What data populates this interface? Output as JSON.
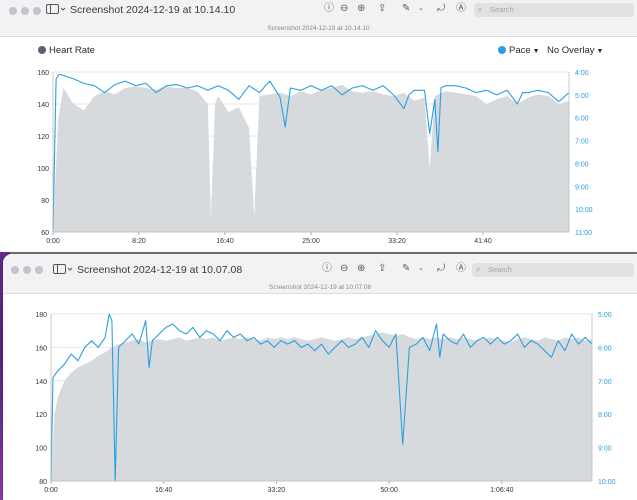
{
  "colors": {
    "pace": "#2b9fe0",
    "area": "#d7dadd",
    "axis_left": "#333333",
    "axis_right": "#2b9fe0",
    "heart_dot": "#5b6472"
  },
  "window1": {
    "title": "Screenshot 2024-12-19 at 10.14.10",
    "subtitle": "Screenshot 2024-12-19 at 10.14.10",
    "search_placeholder": "Search",
    "legend": {
      "heart_rate": "Heart Rate",
      "pace": "Pace",
      "overlay": "No Overlay"
    },
    "chart_data": {
      "type": "area+line",
      "x_ticks": [
        "0:00",
        "8:20",
        "16:40",
        "25:00",
        "33:20",
        "41:40"
      ],
      "x_range_min": [
        0,
        50
      ],
      "y_left_ticks": [
        "60",
        "80",
        "100",
        "120",
        "140",
        "160"
      ],
      "y_left_range": [
        60,
        160
      ],
      "y_right_ticks": [
        "4:00",
        "5:00",
        "6:00",
        "7:00",
        "8:00",
        "9:00",
        "10:00",
        "11:00"
      ],
      "y_right_range_min_per_unit": [
        4,
        11
      ],
      "heart_rate": [
        [
          0,
          60
        ],
        [
          0.5,
          130
        ],
        [
          1,
          150
        ],
        [
          2,
          140
        ],
        [
          3,
          136
        ],
        [
          4,
          145
        ],
        [
          5,
          148
        ],
        [
          6,
          146
        ],
        [
          7,
          150
        ],
        [
          8,
          151
        ],
        [
          9,
          150
        ],
        [
          10,
          149
        ],
        [
          11,
          151
        ],
        [
          12,
          150
        ],
        [
          13,
          150
        ],
        [
          14,
          148
        ],
        [
          15,
          140
        ],
        [
          15.3,
          70
        ],
        [
          15.7,
          140
        ],
        [
          16,
          145
        ],
        [
          17,
          135
        ],
        [
          18,
          138
        ],
        [
          19,
          125
        ],
        [
          19.5,
          70
        ],
        [
          20,
          145
        ],
        [
          21,
          146
        ],
        [
          22,
          147
        ],
        [
          23,
          145
        ],
        [
          24,
          148
        ],
        [
          25,
          146
        ],
        [
          26,
          149
        ],
        [
          27,
          150
        ],
        [
          28,
          152
        ],
        [
          29,
          148
        ],
        [
          30,
          147
        ],
        [
          31,
          148
        ],
        [
          32,
          146
        ],
        [
          33,
          145
        ],
        [
          34,
          147
        ],
        [
          35,
          142
        ],
        [
          36,
          144
        ],
        [
          36.5,
          100
        ],
        [
          37,
          145
        ],
        [
          38,
          148
        ],
        [
          39,
          147
        ],
        [
          40,
          146
        ],
        [
          41,
          145
        ],
        [
          42,
          140
        ],
        [
          43,
          143
        ],
        [
          44,
          145
        ],
        [
          45,
          140
        ],
        [
          46,
          144
        ],
        [
          47,
          146
        ],
        [
          48,
          145
        ],
        [
          49,
          140
        ],
        [
          50,
          142
        ]
      ],
      "pace": [
        [
          0,
          11
        ],
        [
          0.3,
          4.3
        ],
        [
          0.6,
          4.1
        ],
        [
          1,
          4.15
        ],
        [
          2,
          4.3
        ],
        [
          3,
          4.5
        ],
        [
          4,
          4.6
        ],
        [
          5,
          4.9
        ],
        [
          6,
          4.55
        ],
        [
          7,
          4.4
        ],
        [
          8,
          4.6
        ],
        [
          9,
          4.5
        ],
        [
          10,
          4.9
        ],
        [
          11,
          4.6
        ],
        [
          12,
          4.55
        ],
        [
          13,
          4.7
        ],
        [
          14,
          4.6
        ],
        [
          15,
          4.8
        ],
        [
          16,
          4.6
        ],
        [
          17,
          4.8
        ],
        [
          18,
          5.2
        ],
        [
          19,
          4.6
        ],
        [
          20,
          4.9
        ],
        [
          21,
          4.4
        ],
        [
          22,
          5.1
        ],
        [
          22.5,
          6.4
        ],
        [
          23,
          4.7
        ],
        [
          24,
          4.8
        ],
        [
          25,
          4.6
        ],
        [
          26,
          4.8
        ],
        [
          27,
          4.6
        ],
        [
          28,
          5.0
        ],
        [
          29,
          4.7
        ],
        [
          30,
          4.6
        ],
        [
          31,
          4.8
        ],
        [
          32,
          4.6
        ],
        [
          33,
          5.0
        ],
        [
          34,
          5.6
        ],
        [
          34.5,
          5.0
        ],
        [
          35,
          4.8
        ],
        [
          36,
          4.8
        ],
        [
          36.5,
          6.7
        ],
        [
          37,
          5.2
        ],
        [
          37.3,
          7.5
        ],
        [
          37.6,
          4.7
        ],
        [
          38,
          4.6
        ],
        [
          39,
          4.6
        ],
        [
          40,
          4.7
        ],
        [
          41,
          4.9
        ],
        [
          42,
          4.8
        ],
        [
          43,
          5.0
        ],
        [
          44,
          4.8
        ],
        [
          45,
          5.4
        ],
        [
          45.5,
          4.9
        ],
        [
          46,
          4.9
        ],
        [
          47,
          4.8
        ],
        [
          48,
          4.9
        ],
        [
          49,
          5.3
        ],
        [
          50,
          4.9
        ]
      ]
    }
  },
  "window2": {
    "title": "Screenshot 2024-12-19 at 10.07.08",
    "subtitle": "Screenshot 2024-12-19 at 10.07.08",
    "search_placeholder": "Search",
    "chart_data": {
      "type": "area+line",
      "x_ticks": [
        "0:00",
        "16:40",
        "33:20",
        "50:00",
        "1:06:40"
      ],
      "x_range_min": [
        0,
        80
      ],
      "y_left_ticks": [
        "80",
        "100",
        "120",
        "140",
        "160",
        "180"
      ],
      "y_left_range": [
        80,
        180
      ],
      "y_right_ticks": [
        "5:00",
        "6:00",
        "7:00",
        "8:00",
        "9:00",
        "10:00"
      ],
      "y_right_range_min_per_unit": [
        5,
        10
      ],
      "heart_rate": [
        [
          0,
          80
        ],
        [
          0.5,
          120
        ],
        [
          1,
          130
        ],
        [
          2,
          140
        ],
        [
          3,
          145
        ],
        [
          4,
          148
        ],
        [
          5,
          150
        ],
        [
          6,
          152
        ],
        [
          7,
          155
        ],
        [
          8,
          157
        ],
        [
          9,
          160
        ],
        [
          10,
          162
        ],
        [
          11,
          163
        ],
        [
          12,
          164
        ],
        [
          13,
          165
        ],
        [
          14,
          163
        ],
        [
          15,
          164
        ],
        [
          16,
          165
        ],
        [
          17,
          164
        ],
        [
          18,
          165
        ],
        [
          19,
          166
        ],
        [
          20,
          164
        ],
        [
          21,
          165
        ],
        [
          22,
          166
        ],
        [
          23,
          165
        ],
        [
          24,
          166
        ],
        [
          25,
          164
        ],
        [
          26,
          165
        ],
        [
          27,
          166
        ],
        [
          28,
          165
        ],
        [
          29,
          166
        ],
        [
          30,
          165
        ],
        [
          31,
          164
        ],
        [
          32,
          166
        ],
        [
          33,
          165
        ],
        [
          34,
          166
        ],
        [
          35,
          165
        ],
        [
          36,
          166
        ],
        [
          37,
          165
        ],
        [
          38,
          164
        ],
        [
          39,
          165
        ],
        [
          40,
          166
        ],
        [
          41,
          165
        ],
        [
          42,
          164
        ],
        [
          43,
          165
        ],
        [
          44,
          166
        ],
        [
          45,
          165
        ],
        [
          46,
          166
        ],
        [
          47,
          167
        ],
        [
          48,
          168
        ],
        [
          49,
          169
        ],
        [
          50,
          168
        ],
        [
          51,
          167
        ],
        [
          52,
          168
        ],
        [
          53,
          166
        ],
        [
          54,
          165
        ],
        [
          55,
          166
        ],
        [
          56,
          165
        ],
        [
          57,
          166
        ],
        [
          58,
          165
        ],
        [
          59,
          166
        ],
        [
          60,
          165
        ],
        [
          61,
          166
        ],
        [
          62,
          165
        ],
        [
          63,
          164
        ],
        [
          64,
          165
        ],
        [
          65,
          166
        ],
        [
          66,
          165
        ],
        [
          67,
          164
        ],
        [
          68,
          163
        ],
        [
          69,
          165
        ],
        [
          70,
          166
        ],
        [
          71,
          165
        ],
        [
          72,
          164
        ],
        [
          73,
          166
        ],
        [
          74,
          165
        ],
        [
          75,
          164
        ],
        [
          76,
          166
        ],
        [
          77,
          165
        ],
        [
          78,
          166
        ],
        [
          79,
          164
        ],
        [
          80,
          165
        ]
      ],
      "pace": [
        [
          0,
          10
        ],
        [
          0.3,
          6.9
        ],
        [
          1,
          6.7
        ],
        [
          2,
          6.5
        ],
        [
          3,
          6.2
        ],
        [
          4,
          6.4
        ],
        [
          5,
          6.0
        ],
        [
          6,
          5.8
        ],
        [
          7,
          6.0
        ],
        [
          8,
          5.7
        ],
        [
          8.6,
          5.0
        ],
        [
          9,
          5.2
        ],
        [
          9.5,
          10
        ],
        [
          10,
          6.0
        ],
        [
          11,
          5.8
        ],
        [
          12,
          5.6
        ],
        [
          13,
          5.9
        ],
        [
          14,
          5.2
        ],
        [
          14.5,
          6.6
        ],
        [
          15,
          5.8
        ],
        [
          16,
          5.6
        ],
        [
          17,
          5.4
        ],
        [
          18,
          5.3
        ],
        [
          19,
          5.5
        ],
        [
          20,
          5.6
        ],
        [
          21,
          5.4
        ],
        [
          22,
          5.7
        ],
        [
          23,
          5.5
        ],
        [
          24,
          5.6
        ],
        [
          25,
          5.8
        ],
        [
          26,
          5.5
        ],
        [
          27,
          5.7
        ],
        [
          28,
          5.6
        ],
        [
          29,
          5.8
        ],
        [
          30,
          5.7
        ],
        [
          31,
          5.9
        ],
        [
          32,
          5.8
        ],
        [
          33,
          6.0
        ],
        [
          34,
          5.8
        ],
        [
          35,
          5.9
        ],
        [
          36,
          5.8
        ],
        [
          37,
          6.0
        ],
        [
          38,
          5.9
        ],
        [
          39,
          6.1
        ],
        [
          40,
          5.9
        ],
        [
          41,
          6.2
        ],
        [
          42,
          6.0
        ],
        [
          43,
          5.8
        ],
        [
          44,
          6.0
        ],
        [
          45,
          5.9
        ],
        [
          46,
          5.7
        ],
        [
          47,
          6.0
        ],
        [
          48,
          5.5
        ],
        [
          49,
          5.8
        ],
        [
          50,
          6.0
        ],
        [
          51,
          5.6
        ],
        [
          52,
          8.9
        ],
        [
          53,
          6.0
        ],
        [
          54,
          5.9
        ],
        [
          55,
          5.7
        ],
        [
          56,
          6.1
        ],
        [
          57,
          5.3
        ],
        [
          57.5,
          6.3
        ],
        [
          58,
          5.6
        ],
        [
          59,
          5.8
        ],
        [
          60,
          5.9
        ],
        [
          61,
          5.6
        ],
        [
          62,
          6.0
        ],
        [
          63,
          5.8
        ],
        [
          64,
          5.7
        ],
        [
          65,
          5.9
        ],
        [
          66,
          5.7
        ],
        [
          67,
          5.9
        ],
        [
          68,
          5.8
        ],
        [
          69,
          5.6
        ],
        [
          70,
          6.0
        ],
        [
          71,
          5.8
        ],
        [
          72,
          5.9
        ],
        [
          73,
          6.1
        ],
        [
          74,
          6.3
        ],
        [
          75,
          5.8
        ],
        [
          76,
          6.1
        ],
        [
          77,
          5.6
        ],
        [
          78,
          5.9
        ],
        [
          79,
          5.7
        ],
        [
          80,
          5.9
        ]
      ]
    }
  }
}
